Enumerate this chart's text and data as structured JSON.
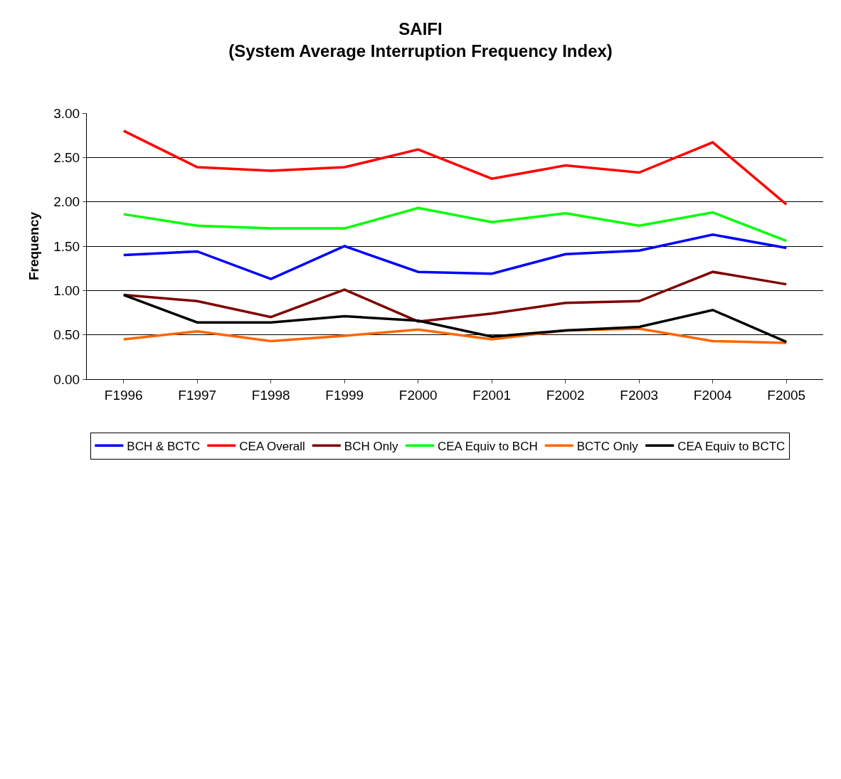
{
  "chart_data": {
    "type": "line",
    "title": "SAIFI\n(System Average Interruption Frequency Index)",
    "ylabel": "Frequency",
    "categories": [
      "F1996",
      "F1997",
      "F1998",
      "F1999",
      "F2000",
      "F2001",
      "F2002",
      "F2003",
      "F2004",
      "F2005"
    ],
    "series": [
      {
        "name": "BCH & BCTC",
        "color": "#0000ff",
        "values": [
          1.4,
          1.44,
          1.13,
          1.5,
          1.21,
          1.19,
          1.41,
          1.45,
          1.63,
          1.48
        ]
      },
      {
        "name": "CEA Overall",
        "color": "#ff0000",
        "values": [
          2.8,
          2.39,
          2.35,
          2.39,
          2.59,
          2.26,
          2.41,
          2.33,
          2.67,
          1.97
        ]
      },
      {
        "name": "BCH Only",
        "color": "#800000",
        "values": [
          0.95,
          0.88,
          0.7,
          1.01,
          0.65,
          0.74,
          0.86,
          0.88,
          1.21,
          1.07
        ]
      },
      {
        "name": "CEA Equiv to BCH",
        "color": "#00ff00",
        "values": [
          1.86,
          1.73,
          1.7,
          1.7,
          1.93,
          1.77,
          1.87,
          1.73,
          1.88,
          1.56
        ]
      },
      {
        "name": "BCTC Only",
        "color": "#ff6600",
        "values": [
          0.45,
          0.54,
          0.43,
          0.49,
          0.56,
          0.45,
          0.55,
          0.57,
          0.43,
          0.41
        ]
      },
      {
        "name": "CEA Equiv to BCTC",
        "color": "#000000",
        "values": [
          0.95,
          0.64,
          0.64,
          0.71,
          0.66,
          0.48,
          0.55,
          0.59,
          0.78,
          0.42
        ]
      }
    ],
    "ylim": [
      0,
      3
    ],
    "yticks": [
      {
        "value": 0,
        "label": "0.00"
      },
      {
        "value": 0.5,
        "label": "0.50"
      },
      {
        "value": 1,
        "label": "1.00"
      },
      {
        "value": 1.5,
        "label": "1.50"
      },
      {
        "value": 2,
        "label": "2.00"
      },
      {
        "value": 2.5,
        "label": "2.50"
      },
      {
        "value": 3,
        "label": "3.00"
      }
    ],
    "grid": "y",
    "legend": "bottom",
    "marker": "none",
    "line_style": "solid"
  }
}
